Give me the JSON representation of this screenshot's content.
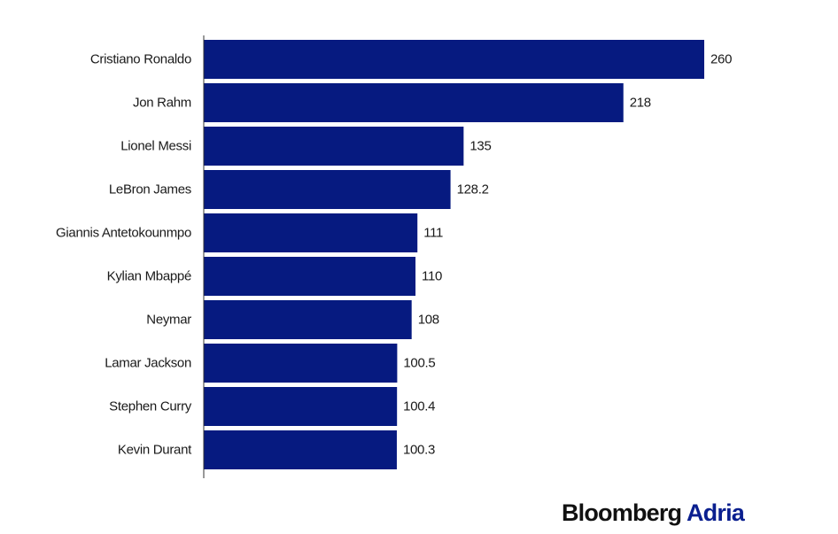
{
  "chart_data": {
    "type": "bar",
    "orientation": "horizontal",
    "categories": [
      "Cristiano Ronaldo",
      "Jon Rahm",
      "Lionel Messi",
      "LeBron James",
      "Giannis Antetokounmpo",
      "Kylian Mbappé",
      "Neymar",
      "Lamar Jackson",
      "Stephen Curry",
      "Kevin Durant"
    ],
    "values": [
      260,
      218,
      135,
      128.2,
      111,
      110,
      108,
      100.5,
      100.4,
      100.3
    ],
    "value_labels": [
      "260",
      "218",
      "135",
      "128.2",
      "111",
      "110",
      "108",
      "100.5",
      "100.4",
      "100.3"
    ],
    "xlim": [
      0,
      260
    ],
    "grid": false,
    "bar_color": "#061a80"
  },
  "branding": {
    "name": "Bloomberg",
    "accent": "Adria",
    "name_color": "#111111",
    "accent_color": "#0a1f8f"
  }
}
